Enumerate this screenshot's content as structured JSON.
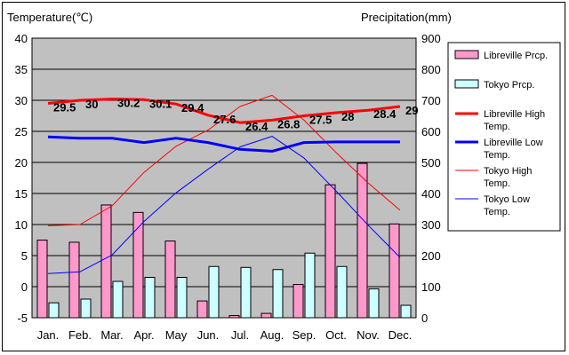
{
  "chart_data": {
    "type": "bar+line",
    "categories": [
      "Jan.",
      "Feb.",
      "Mar.",
      "Apr.",
      "May",
      "Jun.",
      "Jul.",
      "Aug.",
      "Sep.",
      "Oct.",
      "Nov.",
      "Dec."
    ],
    "left_axis": {
      "label": "Temperature(℃)",
      "ylim": [
        -5,
        40
      ],
      "ticks": [
        "40",
        "35",
        "30",
        "25",
        "20",
        "15",
        "10",
        "5",
        "0",
        "-5"
      ]
    },
    "right_axis": {
      "label": "Precipitation(mm)",
      "ylim": [
        0,
        900
      ],
      "ticks": [
        "900",
        "800",
        "700",
        "600",
        "500",
        "400",
        "300",
        "200",
        "100",
        "0"
      ]
    },
    "series": [
      {
        "name": "Libreville Prcp.",
        "kind": "bar",
        "axis": "right",
        "color": "#ff99cc",
        "values": [
          250,
          243,
          363,
          339,
          247,
          54,
          7,
          14,
          107,
          428,
          497,
          302
        ]
      },
      {
        "name": "Tokyo Prcp.",
        "kind": "bar",
        "axis": "right",
        "color": "#ccffff",
        "values": [
          48,
          60,
          117,
          130,
          130,
          165,
          162,
          155,
          208,
          165,
          93,
          40
        ]
      },
      {
        "name": "Libreville High Temp.",
        "kind": "line",
        "axis": "left",
        "color": "#ff0000",
        "width": 3,
        "values": [
          29.5,
          30,
          30.2,
          30.1,
          29.4,
          27.6,
          26.4,
          26.8,
          27.5,
          28,
          28.4,
          29
        ]
      },
      {
        "name": "Libreville Low Temp.",
        "kind": "line",
        "axis": "left",
        "color": "#0000ff",
        "width": 3,
        "values": [
          24.1,
          23.9,
          23.9,
          23.2,
          23.9,
          23.2,
          22.1,
          21.8,
          23.2,
          23.3,
          23.3,
          23.3
        ]
      },
      {
        "name": "Tokyo High Temp.",
        "kind": "line",
        "axis": "left",
        "color": "#ff0000",
        "width": 1,
        "values": [
          9.8,
          10,
          13,
          18.4,
          22.6,
          25.2,
          29,
          30.8,
          26.8,
          21.6,
          16.7,
          12.3
        ]
      },
      {
        "name": "Tokyo Low Temp.",
        "kind": "line",
        "axis": "left",
        "color": "#0000ff",
        "width": 1,
        "values": [
          2.1,
          2.4,
          5.1,
          10.5,
          15.1,
          18.9,
          22.5,
          24.2,
          20.7,
          15.4,
          9.9,
          4.7
        ]
      }
    ],
    "data_labels": [
      "29.5",
      "30",
      "30.2",
      "30.1",
      "29.4",
      "27.6",
      "26.4",
      "26.8",
      "27.5",
      "28",
      "28.4",
      "29"
    ],
    "plot_background": "#c0c0c0",
    "grid": true,
    "legend_position": "right"
  }
}
